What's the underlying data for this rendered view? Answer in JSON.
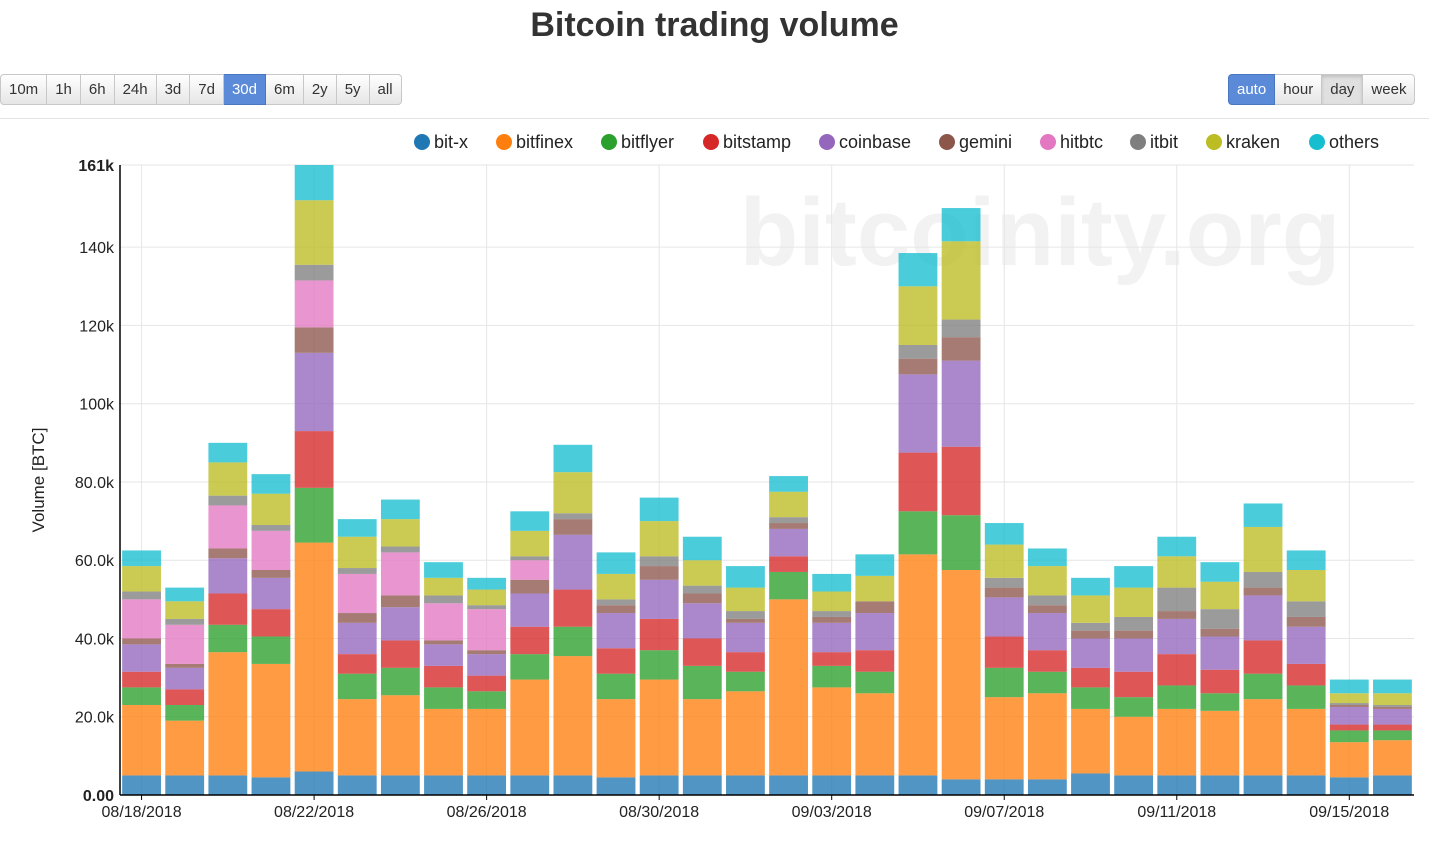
{
  "title": "Bitcoin trading volume",
  "range_buttons": [
    {
      "label": "10m",
      "active": false
    },
    {
      "label": "1h",
      "active": false
    },
    {
      "label": "6h",
      "active": false
    },
    {
      "label": "24h",
      "active": false
    },
    {
      "label": "3d",
      "active": false
    },
    {
      "label": "7d",
      "active": false
    },
    {
      "label": "30d",
      "active": true
    },
    {
      "label": "6m",
      "active": false
    },
    {
      "label": "2y",
      "active": false
    },
    {
      "label": "5y",
      "active": false
    },
    {
      "label": "all",
      "active": false
    }
  ],
  "resolution_buttons": [
    {
      "label": "auto",
      "active": true
    },
    {
      "label": "hour",
      "active": false
    },
    {
      "label": "day",
      "pressed": true
    },
    {
      "label": "week",
      "active": false
    }
  ],
  "watermark": "bitcoinity.org",
  "chart_data": {
    "type": "bar",
    "stacked": true,
    "ylabel": "Volume [BTC]",
    "ylim": [
      0,
      161000
    ],
    "yticks": [
      "0.00",
      "20.0k",
      "40.0k",
      "60.0k",
      "80.0k",
      "100k",
      "120k",
      "140k",
      "161k"
    ],
    "ytick_values": [
      0,
      20000,
      40000,
      60000,
      80000,
      100000,
      120000,
      140000,
      161000
    ],
    "xtick_labels": [
      "08/18/2018",
      "08/22/2018",
      "08/26/2018",
      "08/30/2018",
      "09/03/2018",
      "09/07/2018",
      "09/11/2018",
      "09/15/2018"
    ],
    "xtick_indices": [
      0,
      4,
      8,
      12,
      16,
      20,
      24,
      28
    ],
    "grid": true,
    "legend_position": "top",
    "categories": [
      "08/18/2018",
      "08/19/2018",
      "08/20/2018",
      "08/21/2018",
      "08/22/2018",
      "08/23/2018",
      "08/24/2018",
      "08/25/2018",
      "08/26/2018",
      "08/27/2018",
      "08/28/2018",
      "08/29/2018",
      "08/30/2018",
      "08/31/2018",
      "09/01/2018",
      "09/02/2018",
      "09/03/2018",
      "09/04/2018",
      "09/05/2018",
      "09/06/2018",
      "09/07/2018",
      "09/08/2018",
      "09/09/2018",
      "09/10/2018",
      "09/11/2018",
      "09/12/2018",
      "09/13/2018",
      "09/14/2018",
      "09/15/2018",
      "09/16/2018"
    ],
    "series": [
      {
        "name": "bit-x",
        "color": "#1f77b4",
        "values": [
          5000,
          5000,
          5000,
          4500,
          6000,
          5000,
          5000,
          5000,
          5000,
          5000,
          5000,
          4500,
          5000,
          5000,
          5000,
          5000,
          5000,
          5000,
          5000,
          4000,
          4000,
          4000,
          5500,
          5000,
          5000,
          5000,
          5000,
          5000,
          4500,
          5000
        ]
      },
      {
        "name": "bitfinex",
        "color": "#ff7f0e",
        "values": [
          18000,
          14000,
          31500,
          29000,
          58500,
          19500,
          20500,
          17000,
          17000,
          24500,
          30500,
          20000,
          24500,
          19500,
          21500,
          45000,
          22500,
          21000,
          56500,
          53500,
          21000,
          22000,
          16500,
          15000,
          17000,
          16500,
          19500,
          17000,
          9000,
          9000
        ]
      },
      {
        "name": "bitflyer",
        "color": "#2ca02c",
        "values": [
          4500,
          4000,
          7000,
          7000,
          14000,
          6500,
          7000,
          5500,
          4500,
          6500,
          7500,
          6500,
          7500,
          8500,
          5000,
          7000,
          5500,
          5500,
          11000,
          14000,
          7500,
          5500,
          5500,
          5000,
          6000,
          4500,
          6500,
          6000,
          3000,
          2500
        ]
      },
      {
        "name": "bitstamp",
        "color": "#d62728",
        "values": [
          4000,
          4000,
          8000,
          7000,
          14500,
          5000,
          7000,
          5500,
          4000,
          7000,
          9500,
          6500,
          8000,
          7000,
          5000,
          4000,
          3500,
          5500,
          15000,
          17500,
          8000,
          5500,
          5000,
          6500,
          8000,
          6000,
          8500,
          5500,
          1500,
          1500
        ]
      },
      {
        "name": "coinbase",
        "color": "#9467bd",
        "values": [
          7000,
          5500,
          9000,
          8000,
          20000,
          8000,
          8500,
          5500,
          5500,
          8500,
          14000,
          9000,
          10000,
          9000,
          7500,
          7000,
          7500,
          9500,
          20000,
          22000,
          10000,
          9500,
          7500,
          8500,
          9000,
          8500,
          11500,
          9500,
          4500,
          4000
        ]
      },
      {
        "name": "gemini",
        "color": "#8c564b",
        "values": [
          1500,
          1000,
          2500,
          2000,
          6500,
          2500,
          3000,
          1000,
          1000,
          3500,
          4000,
          2000,
          3500,
          2500,
          1000,
          1500,
          1500,
          3000,
          4000,
          6000,
          2500,
          2000,
          2000,
          2000,
          2000,
          2000,
          2000,
          2500,
          500,
          500
        ]
      },
      {
        "name": "hitbtc",
        "color": "#e377c2",
        "values": [
          10000,
          10000,
          11000,
          10000,
          12000,
          10000,
          11000,
          9500,
          10500,
          5000,
          0,
          0,
          0,
          0,
          0,
          0,
          0,
          0,
          0,
          0,
          0,
          0,
          0,
          0,
          0,
          0,
          0,
          0,
          0,
          0
        ]
      },
      {
        "name": "itbit",
        "color": "#7f7f7f",
        "values": [
          2000,
          1500,
          2500,
          1500,
          4000,
          1500,
          1500,
          2000,
          1000,
          1000,
          1500,
          1500,
          2500,
          2000,
          2000,
          1500,
          1500,
          0,
          3500,
          4500,
          2500,
          2500,
          2000,
          3500,
          6000,
          5000,
          4000,
          4000,
          500,
          500
        ]
      },
      {
        "name": "kraken",
        "color": "#bcbd22",
        "values": [
          6500,
          4500,
          8500,
          8000,
          16500,
          8000,
          7000,
          4500,
          4000,
          6500,
          10500,
          6500,
          9000,
          6500,
          6000,
          6500,
          5000,
          6500,
          15000,
          20000,
          8500,
          7500,
          7000,
          7500,
          8000,
          7000,
          11500,
          8000,
          2500,
          3000
        ]
      },
      {
        "name": "others",
        "color": "#17becf",
        "values": [
          4000,
          3500,
          5000,
          5000,
          9000,
          4500,
          5000,
          4000,
          3000,
          5000,
          7000,
          5500,
          6000,
          6000,
          5500,
          4000,
          4500,
          5500,
          8500,
          8500,
          5500,
          4500,
          4500,
          5500,
          5000,
          5000,
          6000,
          5000,
          3500,
          3500
        ]
      }
    ]
  }
}
